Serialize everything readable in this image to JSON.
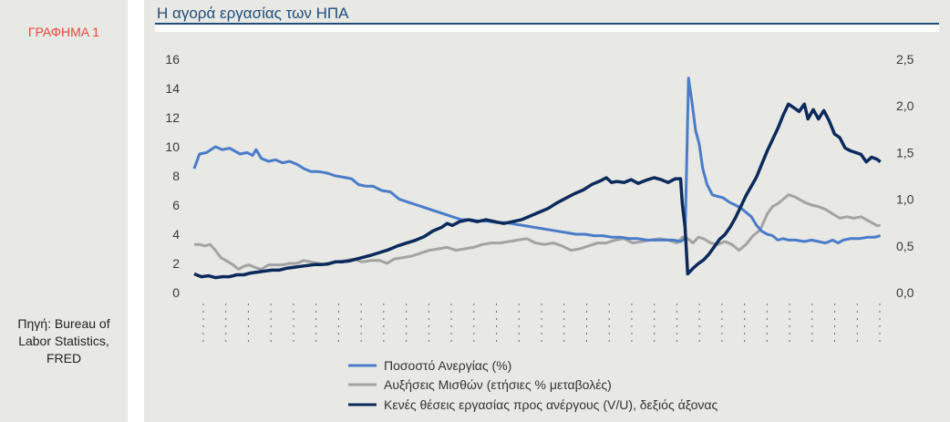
{
  "figure_label": "ΓΡΑΦΗΜΑ 1",
  "source": [
    "Πηγή: Bureau of",
    "Labor Statistics,",
    "FRED"
  ],
  "colors": {
    "unemployment": "#4a7cc9",
    "wages": "#a3a3a3",
    "vu": "#0b2a5b",
    "title": "#1f4e79",
    "figure_label": "#e8473b",
    "panel": "#e8e8e5"
  },
  "chart_data": {
    "type": "line",
    "title": "Η αγορά εργασίας των ΗΠΑ",
    "xlabel": "",
    "ylabel": "",
    "y_left": {
      "lim": [
        0,
        16
      ],
      "ticks": [
        "0",
        "2",
        "4",
        "6",
        "8",
        "10",
        "12",
        "14",
        "16"
      ]
    },
    "y_right": {
      "lim": [
        0,
        2.5
      ],
      "ticks": [
        "0,0",
        "0,5",
        "1,0",
        "1,5",
        "2,0",
        "2,5"
      ]
    },
    "grid": false,
    "legend_position": "bottom",
    "x_start": "2010-01",
    "x_end": "2024-12",
    "x_tick_labels": [
      "",
      "",
      "",
      "",
      "",
      "",
      "",
      "",
      "",
      "",
      "",
      "",
      "",
      "",
      "",
      "",
      "",
      "",
      "",
      "",
      "",
      "",
      "",
      "",
      "",
      "",
      "",
      "",
      "",
      "",
      ""
    ],
    "series": [
      {
        "name": "Ποσοστό Ανεργίας (%)",
        "axis": "left",
        "points": [
          [
            0,
            8.5
          ],
          [
            6,
            9.5
          ],
          [
            14,
            9.6
          ],
          [
            24,
            10.0
          ],
          [
            32,
            9.8
          ],
          [
            40,
            9.9
          ],
          [
            52,
            9.5
          ],
          [
            60,
            9.6
          ],
          [
            66,
            9.4
          ],
          [
            70,
            9.8
          ],
          [
            76,
            9.2
          ],
          [
            84,
            9.0
          ],
          [
            92,
            9.1
          ],
          [
            100,
            8.9
          ],
          [
            108,
            9.0
          ],
          [
            116,
            8.8
          ],
          [
            124,
            8.5
          ],
          [
            132,
            8.3
          ],
          [
            140,
            8.3
          ],
          [
            150,
            8.2
          ],
          [
            160,
            8.0
          ],
          [
            170,
            7.9
          ],
          [
            178,
            7.8
          ],
          [
            186,
            7.4
          ],
          [
            194,
            7.3
          ],
          [
            202,
            7.3
          ],
          [
            212,
            7.0
          ],
          [
            222,
            6.9
          ],
          [
            232,
            6.4
          ],
          [
            242,
            6.2
          ],
          [
            252,
            6.0
          ],
          [
            262,
            5.8
          ],
          [
            272,
            5.6
          ],
          [
            282,
            5.4
          ],
          [
            292,
            5.2
          ],
          [
            302,
            5.0
          ],
          [
            312,
            5.0
          ],
          [
            322,
            4.9
          ],
          [
            332,
            4.9
          ],
          [
            342,
            4.8
          ],
          [
            352,
            4.8
          ],
          [
            362,
            4.7
          ],
          [
            372,
            4.6
          ],
          [
            382,
            4.5
          ],
          [
            392,
            4.4
          ],
          [
            402,
            4.3
          ],
          [
            412,
            4.2
          ],
          [
            422,
            4.1
          ],
          [
            432,
            4.0
          ],
          [
            442,
            4.0
          ],
          [
            452,
            3.9
          ],
          [
            462,
            3.9
          ],
          [
            472,
            3.8
          ],
          [
            482,
            3.8
          ],
          [
            492,
            3.7
          ],
          [
            502,
            3.7
          ],
          [
            512,
            3.6
          ],
          [
            522,
            3.6
          ],
          [
            532,
            3.6
          ],
          [
            542,
            3.6
          ],
          [
            550,
            3.5
          ],
          [
            555,
            3.7
          ],
          [
            559,
            14.7
          ],
          [
            563,
            13.0
          ],
          [
            567,
            11.1
          ],
          [
            571,
            10.2
          ],
          [
            575,
            8.5
          ],
          [
            580,
            7.4
          ],
          [
            586,
            6.7
          ],
          [
            592,
            6.6
          ],
          [
            598,
            6.5
          ],
          [
            605,
            6.2
          ],
          [
            612,
            6.0
          ],
          [
            618,
            5.8
          ],
          [
            624,
            5.5
          ],
          [
            630,
            5.2
          ],
          [
            636,
            4.6
          ],
          [
            642,
            4.2
          ],
          [
            648,
            4.0
          ],
          [
            654,
            3.9
          ],
          [
            660,
            3.6
          ],
          [
            666,
            3.7
          ],
          [
            672,
            3.6
          ],
          [
            680,
            3.6
          ],
          [
            690,
            3.5
          ],
          [
            698,
            3.6
          ],
          [
            706,
            3.5
          ],
          [
            714,
            3.4
          ],
          [
            722,
            3.6
          ],
          [
            728,
            3.4
          ],
          [
            734,
            3.6
          ],
          [
            742,
            3.7
          ],
          [
            752,
            3.7
          ],
          [
            762,
            3.8
          ],
          [
            770,
            3.8
          ],
          [
            776,
            3.9
          ]
        ]
      },
      {
        "name": "Αυξήσεις Μισθών (ετήσιες % μεταβολές)",
        "axis": "left",
        "points": [
          [
            0,
            3.3
          ],
          [
            6,
            3.3
          ],
          [
            12,
            3.2
          ],
          [
            18,
            3.3
          ],
          [
            24,
            2.9
          ],
          [
            30,
            2.4
          ],
          [
            36,
            2.2
          ],
          [
            44,
            1.9
          ],
          [
            50,
            1.6
          ],
          [
            56,
            1.8
          ],
          [
            62,
            1.9
          ],
          [
            70,
            1.7
          ],
          [
            76,
            1.6
          ],
          [
            84,
            1.9
          ],
          [
            92,
            1.9
          ],
          [
            100,
            1.9
          ],
          [
            108,
            2.0
          ],
          [
            116,
            2.0
          ],
          [
            124,
            2.2
          ],
          [
            132,
            2.1
          ],
          [
            140,
            2.0
          ],
          [
            150,
            1.9
          ],
          [
            160,
            2.1
          ],
          [
            170,
            2.2
          ],
          [
            180,
            2.3
          ],
          [
            190,
            2.1
          ],
          [
            200,
            2.2
          ],
          [
            210,
            2.2
          ],
          [
            218,
            2.0
          ],
          [
            226,
            2.3
          ],
          [
            236,
            2.4
          ],
          [
            246,
            2.5
          ],
          [
            256,
            2.7
          ],
          [
            266,
            2.9
          ],
          [
            276,
            3.0
          ],
          [
            286,
            3.1
          ],
          [
            296,
            2.9
          ],
          [
            306,
            3.0
          ],
          [
            316,
            3.1
          ],
          [
            326,
            3.3
          ],
          [
            336,
            3.4
          ],
          [
            346,
            3.4
          ],
          [
            356,
            3.5
          ],
          [
            366,
            3.6
          ],
          [
            376,
            3.7
          ],
          [
            386,
            3.4
          ],
          [
            396,
            3.3
          ],
          [
            406,
            3.4
          ],
          [
            416,
            3.2
          ],
          [
            426,
            2.9
          ],
          [
            436,
            3.0
          ],
          [
            446,
            3.2
          ],
          [
            456,
            3.4
          ],
          [
            466,
            3.4
          ],
          [
            476,
            3.6
          ],
          [
            486,
            3.7
          ],
          [
            496,
            3.4
          ],
          [
            506,
            3.5
          ],
          [
            516,
            3.6
          ],
          [
            526,
            3.7
          ],
          [
            536,
            3.6
          ],
          [
            546,
            3.4
          ],
          [
            552,
            3.8
          ],
          [
            558,
            3.7
          ],
          [
            564,
            3.4
          ],
          [
            570,
            3.8
          ],
          [
            576,
            3.7
          ],
          [
            584,
            3.4
          ],
          [
            592,
            3.3
          ],
          [
            600,
            3.5
          ],
          [
            608,
            3.3
          ],
          [
            616,
            2.9
          ],
          [
            624,
            3.3
          ],
          [
            632,
            3.9
          ],
          [
            640,
            4.3
          ],
          [
            648,
            5.4
          ],
          [
            654,
            5.9
          ],
          [
            660,
            6.1
          ],
          [
            666,
            6.4
          ],
          [
            672,
            6.7
          ],
          [
            678,
            6.6
          ],
          [
            684,
            6.4
          ],
          [
            690,
            6.2
          ],
          [
            698,
            6.0
          ],
          [
            706,
            5.9
          ],
          [
            714,
            5.7
          ],
          [
            722,
            5.4
          ],
          [
            730,
            5.1
          ],
          [
            738,
            5.2
          ],
          [
            746,
            5.1
          ],
          [
            754,
            5.2
          ],
          [
            760,
            5.0
          ],
          [
            766,
            4.8
          ],
          [
            772,
            4.6
          ],
          [
            776,
            4.6
          ]
        ]
      },
      {
        "name": "Κενές θέσεις εργασίας προς ανέργους (V/U), δεξιός άξονας",
        "axis": "right",
        "points": [
          [
            0,
            0.2
          ],
          [
            8,
            0.17
          ],
          [
            16,
            0.18
          ],
          [
            24,
            0.16
          ],
          [
            32,
            0.17
          ],
          [
            40,
            0.17
          ],
          [
            48,
            0.19
          ],
          [
            56,
            0.19
          ],
          [
            64,
            0.21
          ],
          [
            72,
            0.22
          ],
          [
            80,
            0.23
          ],
          [
            88,
            0.24
          ],
          [
            96,
            0.24
          ],
          [
            104,
            0.26
          ],
          [
            112,
            0.27
          ],
          [
            120,
            0.28
          ],
          [
            128,
            0.29
          ],
          [
            136,
            0.3
          ],
          [
            144,
            0.3
          ],
          [
            152,
            0.31
          ],
          [
            160,
            0.33
          ],
          [
            168,
            0.33
          ],
          [
            176,
            0.34
          ],
          [
            184,
            0.36
          ],
          [
            192,
            0.38
          ],
          [
            200,
            0.4
          ],
          [
            210,
            0.43
          ],
          [
            220,
            0.46
          ],
          [
            230,
            0.5
          ],
          [
            240,
            0.53
          ],
          [
            250,
            0.56
          ],
          [
            260,
            0.6
          ],
          [
            270,
            0.66
          ],
          [
            280,
            0.7
          ],
          [
            286,
            0.74
          ],
          [
            292,
            0.72
          ],
          [
            300,
            0.76
          ],
          [
            310,
            0.78
          ],
          [
            320,
            0.76
          ],
          [
            330,
            0.78
          ],
          [
            340,
            0.76
          ],
          [
            350,
            0.74
          ],
          [
            360,
            0.76
          ],
          [
            370,
            0.78
          ],
          [
            380,
            0.82
          ],
          [
            390,
            0.86
          ],
          [
            400,
            0.9
          ],
          [
            410,
            0.96
          ],
          [
            420,
            1.01
          ],
          [
            430,
            1.06
          ],
          [
            440,
            1.1
          ],
          [
            450,
            1.16
          ],
          [
            460,
            1.2
          ],
          [
            466,
            1.23
          ],
          [
            472,
            1.18
          ],
          [
            478,
            1.19
          ],
          [
            486,
            1.18
          ],
          [
            494,
            1.21
          ],
          [
            502,
            1.17
          ],
          [
            510,
            1.2
          ],
          [
            520,
            1.23
          ],
          [
            528,
            1.21
          ],
          [
            536,
            1.18
          ],
          [
            544,
            1.22
          ],
          [
            550,
            1.22
          ],
          [
            552,
            0.95
          ],
          [
            555,
            0.7
          ],
          [
            558,
            0.2
          ],
          [
            564,
            0.26
          ],
          [
            570,
            0.31
          ],
          [
            576,
            0.35
          ],
          [
            582,
            0.41
          ],
          [
            588,
            0.49
          ],
          [
            594,
            0.57
          ],
          [
            600,
            0.62
          ],
          [
            606,
            0.7
          ],
          [
            612,
            0.8
          ],
          [
            618,
            0.92
          ],
          [
            624,
            1.04
          ],
          [
            630,
            1.14
          ],
          [
            636,
            1.24
          ],
          [
            642,
            1.38
          ],
          [
            648,
            1.52
          ],
          [
            654,
            1.64
          ],
          [
            660,
            1.76
          ],
          [
            666,
            1.9
          ],
          [
            672,
            2.02
          ],
          [
            678,
            1.98
          ],
          [
            684,
            1.94
          ],
          [
            690,
            2.02
          ],
          [
            694,
            1.86
          ],
          [
            700,
            1.96
          ],
          [
            706,
            1.86
          ],
          [
            712,
            1.95
          ],
          [
            718,
            1.84
          ],
          [
            724,
            1.7
          ],
          [
            730,
            1.66
          ],
          [
            736,
            1.55
          ],
          [
            742,
            1.52
          ],
          [
            748,
            1.5
          ],
          [
            754,
            1.48
          ],
          [
            760,
            1.4
          ],
          [
            766,
            1.45
          ],
          [
            772,
            1.43
          ],
          [
            776,
            1.4
          ]
        ]
      }
    ]
  }
}
